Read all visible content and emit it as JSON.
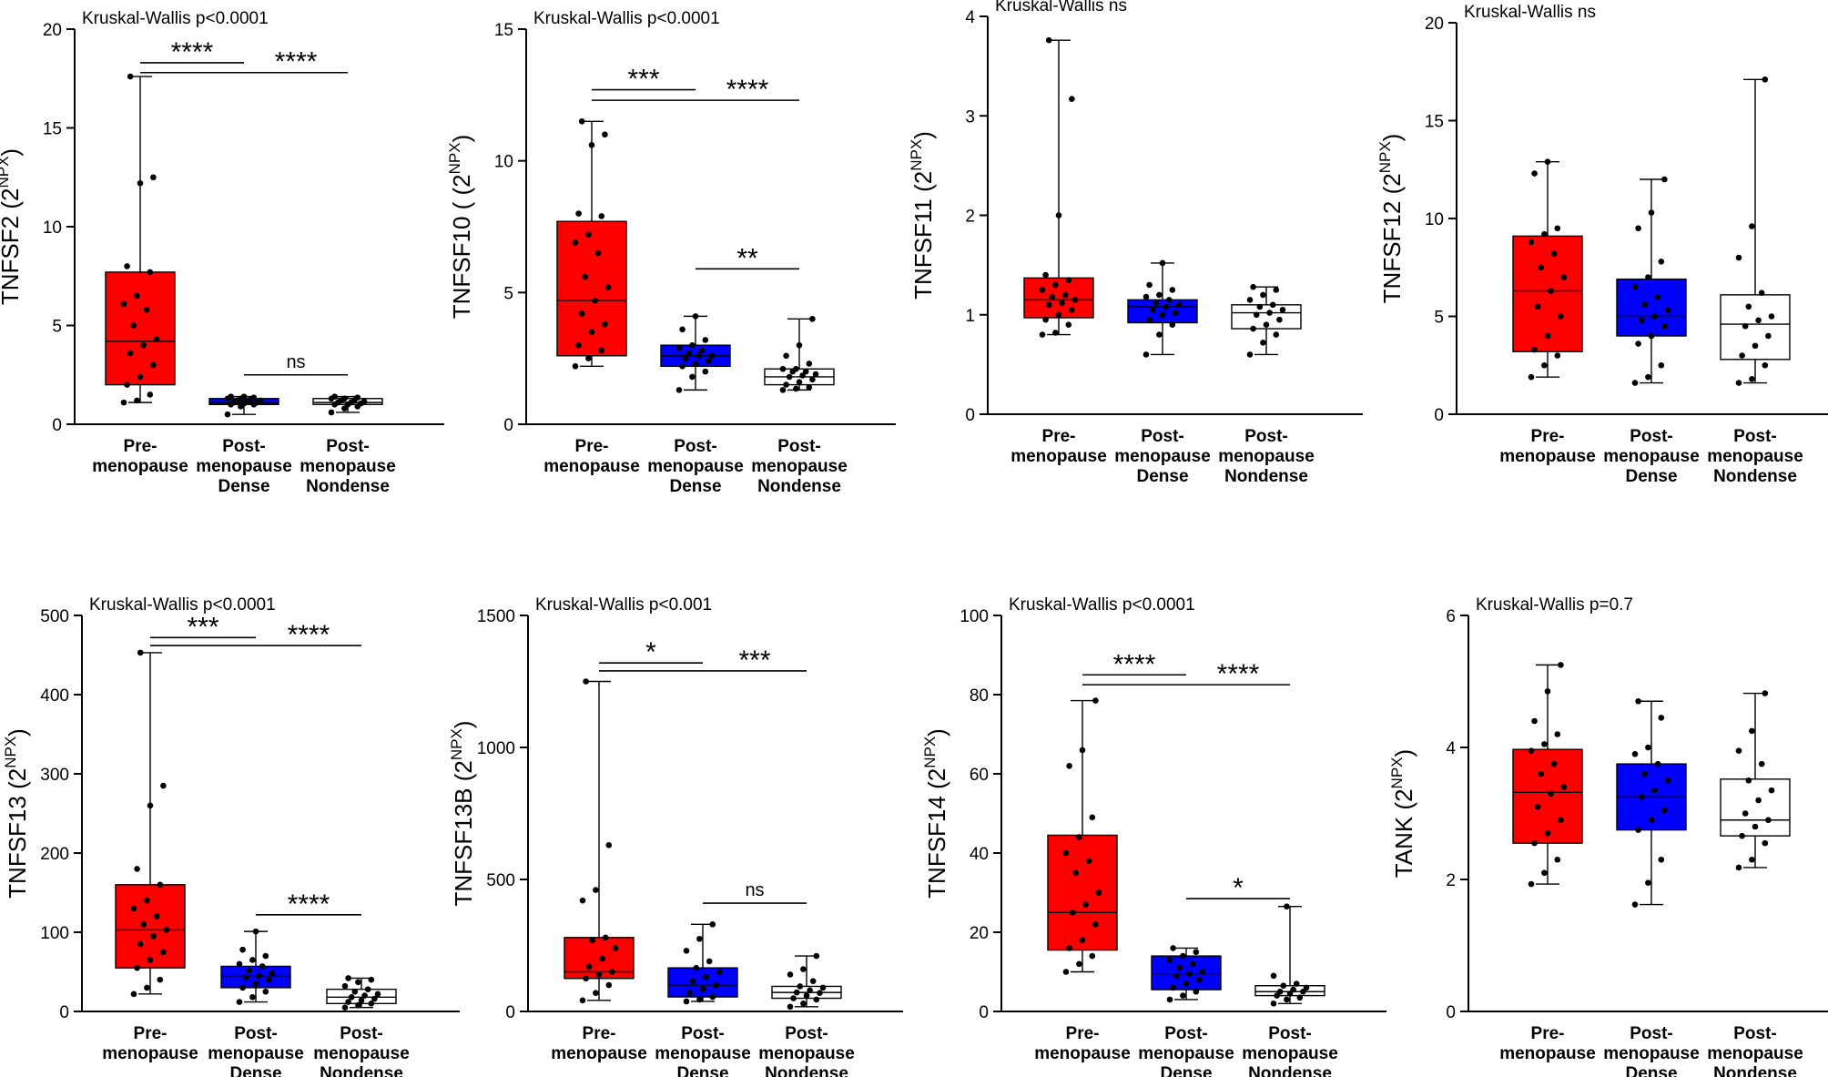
{
  "chart_data": [
    {
      "type": "box",
      "ylabel": "TNFSF2",
      "ylabel_unit": "NPX",
      "stat_label": "Kruskal-Wallis p<0.0001",
      "yticks": [
        0,
        5,
        10,
        15,
        20
      ],
      "ylim": [
        0,
        20
      ],
      "categories": [
        {
          "line1": "Pre-",
          "line2": "menopause",
          "line3": ""
        },
        {
          "line1": "Post-",
          "line2": "menopause",
          "line3": "Dense"
        },
        {
          "line1": "Post-",
          "line2": "menopause",
          "line3": "Nondense"
        }
      ],
      "boxes": [
        {
          "color": "#ff0000",
          "min": 1.1,
          "q1": 2.0,
          "median": 4.2,
          "q3": 7.7,
          "max": 17.6,
          "points": [
            1.1,
            1.2,
            1.5,
            2.0,
            2.4,
            3.0,
            3.6,
            4.0,
            4.3,
            5.0,
            5.8,
            6.1,
            6.5,
            7.7,
            8.0,
            12.2,
            12.5,
            17.6
          ]
        },
        {
          "color": "#0000ff",
          "min": 0.5,
          "q1": 1.0,
          "median": 1.1,
          "q3": 1.3,
          "max": 1.4,
          "points": [
            0.5,
            0.9,
            1.0,
            1.0,
            1.05,
            1.1,
            1.1,
            1.15,
            1.2,
            1.2,
            1.25,
            1.3,
            1.3,
            1.35,
            1.4,
            1.4
          ]
        },
        {
          "color": "#ffffff",
          "min": 0.6,
          "q1": 1.0,
          "median": 1.1,
          "q3": 1.3,
          "max": 1.4,
          "points": [
            0.6,
            0.8,
            0.9,
            1.0,
            1.0,
            1.05,
            1.1,
            1.1,
            1.15,
            1.2,
            1.2,
            1.3,
            1.3,
            1.35,
            1.4
          ]
        }
      ],
      "brackets": [
        {
          "from": 0,
          "to": 1,
          "y": 18.3,
          "label": "****"
        },
        {
          "from": 0,
          "to": 2,
          "y": 17.8,
          "label": "****"
        },
        {
          "from": 1,
          "to": 2,
          "y": 2.5,
          "label": "ns"
        }
      ]
    },
    {
      "type": "box",
      "ylabel": "TNFSF10 (",
      "ylabel_unit": "NPX",
      "stat_label": "Kruskal-Wallis p<0.0001",
      "yticks": [
        0,
        5,
        10,
        15
      ],
      "ylim": [
        0,
        15
      ],
      "categories": [
        {
          "line1": "Pre-",
          "line2": "menopause",
          "line3": ""
        },
        {
          "line1": "Post-",
          "line2": "menopause",
          "line3": "Dense"
        },
        {
          "line1": "Post-",
          "line2": "menopause",
          "line3": "Nondense"
        }
      ],
      "boxes": [
        {
          "color": "#ff0000",
          "min": 2.2,
          "q1": 2.6,
          "median": 4.7,
          "q3": 7.7,
          "max": 11.5,
          "points": [
            2.2,
            2.5,
            2.8,
            3.0,
            3.5,
            3.8,
            4.2,
            4.7,
            5.2,
            5.6,
            6.5,
            6.9,
            7.2,
            7.9,
            8.0,
            10.6,
            11.0,
            11.5
          ]
        },
        {
          "color": "#0000ff",
          "min": 1.3,
          "q1": 2.2,
          "median": 2.6,
          "q3": 3.0,
          "max": 4.1,
          "points": [
            1.3,
            1.8,
            2.0,
            2.2,
            2.3,
            2.4,
            2.5,
            2.6,
            2.6,
            2.7,
            2.8,
            2.9,
            3.0,
            3.2,
            3.6,
            4.1
          ]
        },
        {
          "color": "#ffffff",
          "min": 1.3,
          "q1": 1.5,
          "median": 1.8,
          "q3": 2.1,
          "max": 4.0,
          "points": [
            1.3,
            1.35,
            1.4,
            1.5,
            1.6,
            1.7,
            1.8,
            1.85,
            1.9,
            2.0,
            2.0,
            2.1,
            2.1,
            2.3,
            2.6,
            3.0,
            4.0
          ]
        }
      ],
      "brackets": [
        {
          "from": 0,
          "to": 1,
          "y": 12.7,
          "label": "***"
        },
        {
          "from": 0,
          "to": 2,
          "y": 12.3,
          "label": "****"
        },
        {
          "from": 1,
          "to": 2,
          "y": 5.9,
          "label": "**"
        }
      ]
    },
    {
      "type": "box",
      "ylabel": "TNFSF11",
      "ylabel_unit": "NPX",
      "stat_label": "Kruskal-Wallis ns",
      "yticks": [
        0,
        1,
        2,
        3,
        4
      ],
      "ylim": [
        0,
        4
      ],
      "categories": [
        {
          "line1": "Pre-",
          "line2": "menopause",
          "line3": ""
        },
        {
          "line1": "Post-",
          "line2": "menopause",
          "line3": "Dense"
        },
        {
          "line1": "Post-",
          "line2": "menopause",
          "line3": "Nondense"
        }
      ],
      "boxes": [
        {
          "color": "#ff0000",
          "min": 0.8,
          "q1": 0.97,
          "median": 1.15,
          "q3": 1.37,
          "max": 3.76,
          "points": [
            0.8,
            0.82,
            0.9,
            0.95,
            1.0,
            1.05,
            1.1,
            1.12,
            1.15,
            1.18,
            1.2,
            1.25,
            1.3,
            1.35,
            1.4,
            2.0,
            3.17,
            3.76
          ]
        },
        {
          "color": "#0000ff",
          "min": 0.6,
          "q1": 0.92,
          "median": 1.08,
          "q3": 1.15,
          "max": 1.52,
          "points": [
            0.6,
            0.8,
            0.9,
            0.95,
            1.0,
            1.02,
            1.05,
            1.08,
            1.1,
            1.12,
            1.15,
            1.18,
            1.2,
            1.25,
            1.3,
            1.52
          ]
        },
        {
          "color": "#ffffff",
          "min": 0.6,
          "q1": 0.86,
          "median": 1.02,
          "q3": 1.1,
          "max": 1.28,
          "points": [
            0.6,
            0.72,
            0.8,
            0.86,
            0.9,
            0.95,
            1.0,
            1.02,
            1.05,
            1.08,
            1.1,
            1.15,
            1.2,
            1.25,
            1.28
          ]
        }
      ],
      "brackets": []
    },
    {
      "type": "box",
      "ylabel": "TNFSF12",
      "ylabel_unit": "NPX",
      "stat_label": "Kruskal-Wallis ns",
      "yticks": [
        0,
        5,
        10,
        15,
        20
      ],
      "ylim": [
        0,
        20
      ],
      "categories": [
        {
          "line1": "Pre-",
          "line2": "menopause",
          "line3": ""
        },
        {
          "line1": "Post-",
          "line2": "menopause",
          "line3": "Dense"
        },
        {
          "line1": "Post-",
          "line2": "menopause",
          "line3": "Nondense"
        }
      ],
      "boxes": [
        {
          "color": "#ff0000",
          "min": 1.9,
          "q1": 3.2,
          "median": 6.3,
          "q3": 9.1,
          "max": 12.9,
          "points": [
            1.9,
            2.5,
            3.0,
            3.3,
            4.0,
            5.0,
            5.5,
            6.3,
            7.0,
            7.5,
            8.2,
            8.8,
            9.2,
            9.5,
            12.3,
            12.9
          ]
        },
        {
          "color": "#0000ff",
          "min": 1.6,
          "q1": 4.0,
          "median": 5.0,
          "q3": 6.9,
          "max": 12.0,
          "points": [
            1.6,
            1.9,
            2.5,
            3.6,
            4.0,
            4.5,
            4.8,
            5.0,
            5.3,
            5.6,
            6.0,
            6.5,
            7.0,
            7.8,
            9.5,
            10.3,
            12.0
          ]
        },
        {
          "color": "#ffffff",
          "min": 1.6,
          "q1": 2.8,
          "median": 4.6,
          "q3": 6.1,
          "max": 17.1,
          "points": [
            1.6,
            1.8,
            2.5,
            3.0,
            3.5,
            4.0,
            4.5,
            4.8,
            5.0,
            5.5,
            6.2,
            8.0,
            9.6,
            17.1
          ]
        }
      ],
      "brackets": []
    },
    {
      "type": "box",
      "ylabel": "TNFSF13",
      "ylabel_unit": "NPX",
      "stat_label": "Kruskal-Wallis p<0.0001",
      "yticks": [
        0,
        100,
        200,
        300,
        400,
        500
      ],
      "ylim": [
        0,
        500
      ],
      "categories": [
        {
          "line1": "Pre-",
          "line2": "menopause",
          "line3": ""
        },
        {
          "line1": "Post-",
          "line2": "menopause",
          "line3": "Dense"
        },
        {
          "line1": "Post-",
          "line2": "menopause",
          "line3": "Nondense"
        }
      ],
      "boxes": [
        {
          "color": "#ff0000",
          "min": 22,
          "q1": 55,
          "median": 103,
          "q3": 160,
          "max": 453,
          "points": [
            22,
            30,
            40,
            55,
            65,
            75,
            85,
            95,
            103,
            110,
            120,
            130,
            140,
            160,
            180,
            260,
            285,
            453
          ]
        },
        {
          "color": "#0000ff",
          "min": 12,
          "q1": 30,
          "median": 45,
          "q3": 57,
          "max": 101,
          "points": [
            12,
            18,
            25,
            30,
            35,
            40,
            43,
            45,
            48,
            52,
            57,
            60,
            65,
            70,
            78,
            101
          ]
        },
        {
          "color": "#ffffff",
          "min": 5,
          "q1": 10,
          "median": 18,
          "q3": 28,
          "max": 42,
          "points": [
            5,
            8,
            10,
            12,
            14,
            16,
            18,
            20,
            22,
            25,
            28,
            32,
            37,
            40,
            42
          ]
        }
      ],
      "brackets": [
        {
          "from": 0,
          "to": 1,
          "y": 472,
          "label": "***"
        },
        {
          "from": 0,
          "to": 2,
          "y": 462,
          "label": "****"
        },
        {
          "from": 1,
          "to": 2,
          "y": 122,
          "label": "****"
        }
      ]
    },
    {
      "type": "box",
      "ylabel": "TNFSF13B",
      "ylabel_unit": "NPX",
      "stat_label": "Kruskal-Wallis p<0.001",
      "yticks": [
        0,
        500,
        1000,
        1500
      ],
      "ylim": [
        0,
        1500
      ],
      "categories": [
        {
          "line1": "Pre-",
          "line2": "menopause",
          "line3": ""
        },
        {
          "line1": "Post-",
          "line2": "menopause",
          "line3": "Dense"
        },
        {
          "line1": "Post-",
          "line2": "menopause",
          "line3": "Nondense"
        }
      ],
      "boxes": [
        {
          "color": "#ff0000",
          "min": 42,
          "q1": 125,
          "median": 150,
          "q3": 280,
          "max": 1250,
          "points": [
            42,
            70,
            100,
            125,
            140,
            150,
            170,
            200,
            240,
            270,
            280,
            420,
            460,
            630,
            1250
          ]
        },
        {
          "color": "#0000ff",
          "min": 38,
          "q1": 55,
          "median": 100,
          "q3": 165,
          "max": 330,
          "points": [
            38,
            45,
            55,
            70,
            85,
            100,
            115,
            130,
            150,
            165,
            190,
            230,
            275,
            330
          ]
        },
        {
          "color": "#ffffff",
          "min": 18,
          "q1": 50,
          "median": 72,
          "q3": 95,
          "max": 210,
          "points": [
            18,
            30,
            45,
            50,
            60,
            70,
            72,
            80,
            90,
            95,
            115,
            140,
            160,
            210
          ]
        }
      ],
      "brackets": [
        {
          "from": 0,
          "to": 1,
          "y": 1320,
          "label": "*"
        },
        {
          "from": 0,
          "to": 2,
          "y": 1290,
          "label": "***"
        },
        {
          "from": 1,
          "to": 2,
          "y": 410,
          "label": "ns"
        }
      ]
    },
    {
      "type": "box",
      "ylabel": "TNFSF14",
      "ylabel_unit": "NPX",
      "stat_label": "Kruskal-Wallis p<0.0001",
      "yticks": [
        0,
        20,
        40,
        60,
        80,
        100
      ],
      "ylim": [
        0,
        100
      ],
      "categories": [
        {
          "line1": "Pre-",
          "line2": "menopause",
          "line3": ""
        },
        {
          "line1": "Post-",
          "line2": "menopause",
          "line3": "Dense"
        },
        {
          "line1": "Post-",
          "line2": "menopause",
          "line3": "Nondense"
        }
      ],
      "boxes": [
        {
          "color": "#ff0000",
          "min": 10,
          "q1": 15.5,
          "median": 25,
          "q3": 44.5,
          "max": 78.5,
          "points": [
            10,
            12,
            14,
            16,
            18,
            22,
            25,
            27,
            30,
            35,
            38,
            40,
            44,
            49,
            62,
            66,
            78.5
          ]
        },
        {
          "color": "#0000ff",
          "min": 3,
          "q1": 5.5,
          "median": 9.5,
          "q3": 14,
          "max": 16,
          "points": [
            3,
            4,
            5,
            6,
            7,
            8,
            9,
            9.5,
            10,
            11,
            12,
            13,
            14,
            15,
            16
          ]
        },
        {
          "color": "#ffffff",
          "min": 2,
          "q1": 4,
          "median": 5,
          "q3": 6.5,
          "max": 26.5,
          "points": [
            2,
            3,
            3.5,
            4,
            4.5,
            5,
            5,
            5.5,
            6,
            6.5,
            7,
            9,
            26.5
          ]
        }
      ],
      "brackets": [
        {
          "from": 0,
          "to": 1,
          "y": 85,
          "label": "****"
        },
        {
          "from": 0,
          "to": 2,
          "y": 82.5,
          "label": "****"
        },
        {
          "from": 1,
          "to": 2,
          "y": 28.5,
          "label": "*"
        }
      ]
    },
    {
      "type": "box",
      "ylabel": "TANK",
      "ylabel_unit": "NPX",
      "stat_label": "Kruskal-Wallis p=0.7",
      "yticks": [
        0,
        2,
        4,
        6
      ],
      "ylim": [
        0,
        6
      ],
      "categories": [
        {
          "line1": "Pre-",
          "line2": "menopause",
          "line3": ""
        },
        {
          "line1": "Post-",
          "line2": "menopause",
          "line3": "Dense"
        },
        {
          "line1": "Post-",
          "line2": "menopause",
          "line3": "Nondense"
        }
      ],
      "boxes": [
        {
          "color": "#ff0000",
          "min": 1.93,
          "q1": 2.55,
          "median": 3.32,
          "q3": 3.97,
          "max": 5.25,
          "points": [
            1.93,
            2.1,
            2.3,
            2.55,
            2.7,
            2.9,
            3.1,
            3.3,
            3.4,
            3.6,
            3.75,
            3.95,
            4.05,
            4.2,
            4.4,
            4.85,
            5.25
          ]
        },
        {
          "color": "#0000ff",
          "min": 1.62,
          "q1": 2.75,
          "median": 3.25,
          "q3": 3.75,
          "max": 4.7,
          "points": [
            1.62,
            1.95,
            2.3,
            2.75,
            2.9,
            3.05,
            3.25,
            3.35,
            3.5,
            3.6,
            3.75,
            3.9,
            4.0,
            4.45,
            4.7
          ]
        },
        {
          "color": "#ffffff",
          "min": 2.18,
          "q1": 2.66,
          "median": 2.9,
          "q3": 3.52,
          "max": 4.82,
          "points": [
            2.18,
            2.3,
            2.55,
            2.66,
            2.8,
            2.9,
            3.0,
            3.2,
            3.35,
            3.5,
            3.75,
            3.95,
            4.25,
            4.82
          ]
        }
      ],
      "brackets": []
    }
  ]
}
